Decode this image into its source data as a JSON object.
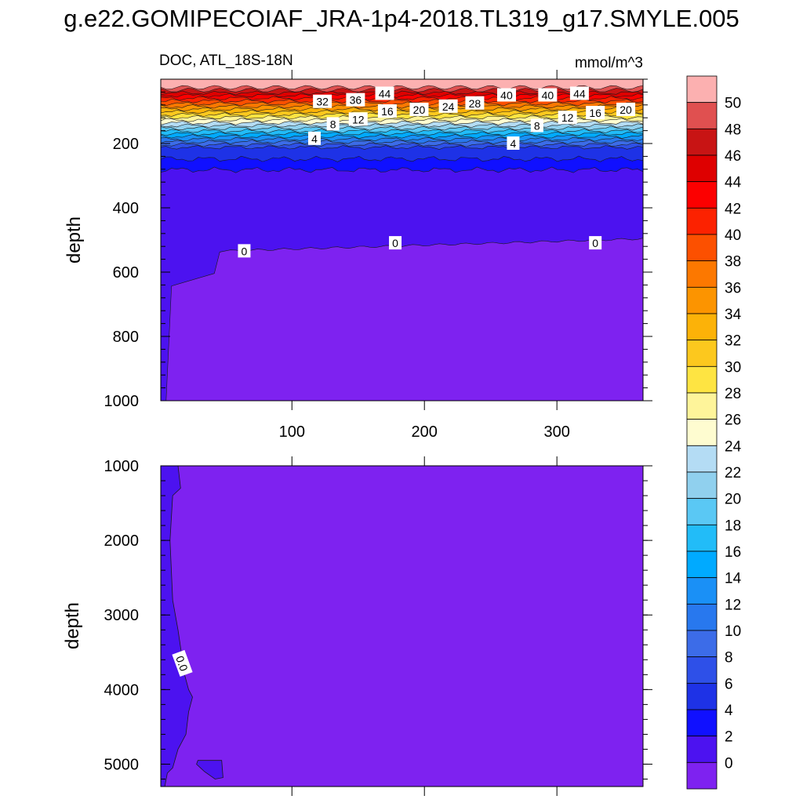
{
  "figure": {
    "title": "g.e22.GOMIPECOIAF_JRA-1p4-2018.TL319_g17.SMYLE.005",
    "left_label": "DOC, ATL_18S-18N",
    "units_label": "mmol/m^3"
  },
  "colors": {
    "levels": [
      "#7e22f0",
      "#4c12f0",
      "#1010ff",
      "#1e32e6",
      "#2e50e8",
      "#3c6ce8",
      "#2878ee",
      "#1a90f6",
      "#00aaff",
      "#22bcf8",
      "#5ac8f4",
      "#90d0ee",
      "#b4dcf4",
      "#fefcd0",
      "#fef49a",
      "#fee442",
      "#fcc81e",
      "#fcb208",
      "#fc9400",
      "#fc7800",
      "#fc5000",
      "#fc2200",
      "#fc0000",
      "#de0000",
      "#c81414",
      "#e05050",
      "#fcb0b0"
    ]
  },
  "chart_data": [
    {
      "type": "contour",
      "panel": "upper",
      "xlabel": "",
      "ylabel": "depth",
      "xlim": [
        1,
        365
      ],
      "ylim": [
        1000,
        0
      ],
      "xticks": [
        100,
        200,
        300
      ],
      "yticks": [
        200,
        400,
        600,
        800,
        1000
      ],
      "contour_levels": [
        0,
        2,
        4,
        6,
        8,
        10,
        12,
        14,
        16,
        18,
        20,
        22,
        24,
        26,
        28,
        30,
        32,
        34,
        36,
        38,
        40,
        42,
        44,
        46,
        48,
        50
      ],
      "contour_labels": [
        {
          "text": "44",
          "x": 170,
          "y": 45
        },
        {
          "text": "36",
          "x": 148,
          "y": 65
        },
        {
          "text": "32",
          "x": 123,
          "y": 70
        },
        {
          "text": "40",
          "x": 262,
          "y": 50
        },
        {
          "text": "40",
          "x": 293,
          "y": 50
        },
        {
          "text": "44",
          "x": 317,
          "y": 45
        },
        {
          "text": "28",
          "x": 238,
          "y": 75
        },
        {
          "text": "24",
          "x": 218,
          "y": 85
        },
        {
          "text": "20",
          "x": 196,
          "y": 95
        },
        {
          "text": "16",
          "x": 172,
          "y": 100
        },
        {
          "text": "16",
          "x": 329,
          "y": 105
        },
        {
          "text": "20",
          "x": 352,
          "y": 95
        },
        {
          "text": "12",
          "x": 150,
          "y": 125
        },
        {
          "text": "12",
          "x": 308,
          "y": 120
        },
        {
          "text": "8",
          "x": 131,
          "y": 140
        },
        {
          "text": "8",
          "x": 285,
          "y": 145
        },
        {
          "text": "4",
          "x": 117,
          "y": 185
        },
        {
          "text": "4",
          "x": 267,
          "y": 200
        },
        {
          "text": "0",
          "x": 64,
          "y": 535
        },
        {
          "text": "0",
          "x": 178,
          "y": 510
        },
        {
          "text": "0",
          "x": 329,
          "y": 510
        }
      ]
    },
    {
      "type": "contour",
      "panel": "lower",
      "xlabel": "",
      "ylabel": "depth",
      "xlim": [
        1,
        365
      ],
      "ylim": [
        5300,
        1000
      ],
      "xticks": [
        100,
        200,
        300
      ],
      "yticks": [
        1000,
        2000,
        3000,
        4000,
        5000
      ],
      "contour_labels": [
        {
          "text": "0.0",
          "x": 17,
          "y": 3650
        }
      ]
    },
    {
      "type": "colorbar",
      "tick_labels": [
        "0",
        "2",
        "4",
        "6",
        "8",
        "10",
        "12",
        "14",
        "16",
        "18",
        "20",
        "22",
        "24",
        "26",
        "28",
        "30",
        "32",
        "34",
        "36",
        "38",
        "40",
        "42",
        "44",
        "46",
        "48",
        "50"
      ]
    }
  ]
}
